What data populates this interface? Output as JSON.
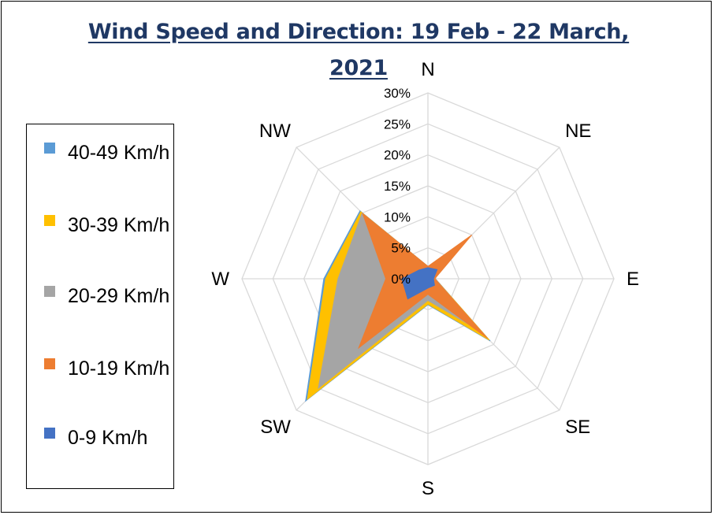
{
  "chart_data": {
    "type": "radar",
    "title": "Wind Speed and Direction: 19 Feb - 22 March, 2021",
    "categories": [
      "N",
      "NE",
      "E",
      "SE",
      "S",
      "SW",
      "W",
      "NW"
    ],
    "ticks": [
      "0%",
      "5%",
      "10%",
      "15%",
      "20%",
      "25%",
      "30%"
    ],
    "rmax": 30,
    "legend_position": "left",
    "series": [
      {
        "name": "40-49 Km/h",
        "color": "#5b9bd5",
        "values": [
          2,
          2.6,
          1.2,
          14.2,
          4.2,
          27.9,
          16.8,
          15.5
        ]
      },
      {
        "name": "30-39 Km/h",
        "color": "#ffc000",
        "values": [
          2,
          2.6,
          1.2,
          14,
          4.1,
          27.5,
          16.5,
          15.3
        ]
      },
      {
        "name": "20-29 Km/h",
        "color": "#a5a5a5",
        "values": [
          2,
          2.6,
          1.2,
          12,
          3.5,
          25,
          14.5,
          15
        ]
      },
      {
        "name": "10-19 Km/h",
        "color": "#ed7d31",
        "values": [
          2,
          10,
          1.1,
          13.6,
          2.5,
          15.8,
          6.8,
          14.9
        ]
      },
      {
        "name": "0-9 Km/h",
        "color": "#4472c4",
        "values": [
          1.8,
          2.1,
          0.9,
          1.5,
          1.5,
          4.6,
          4.2,
          2
        ]
      }
    ]
  }
}
